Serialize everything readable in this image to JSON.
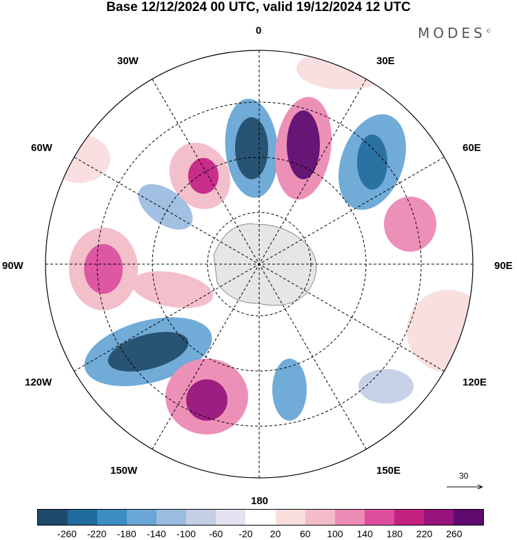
{
  "title": "Base 12/12/2024 00 UTC, valid 19/12/2024 12 UTC",
  "brand": "MODES",
  "brand_mark": "©",
  "longitude_labels": {
    "lon_0": "0",
    "lon_30e": "30E",
    "lon_60e": "60E",
    "lon_90e": "90E",
    "lon_120e": "120E",
    "lon_150e": "150E",
    "lon_180": "180",
    "lon_150w": "150W",
    "lon_120w": "120W",
    "lon_90w": "90W",
    "lon_60w": "60W",
    "lon_30w": "30W"
  },
  "vector_reference": "30",
  "colorbar": {
    "colors": [
      "#1d4a6b",
      "#1f6b9c",
      "#3e8ec4",
      "#6aa7d6",
      "#9dbde0",
      "#c4cfe6",
      "#e4e2f1",
      "#ffffff",
      "#f9dede",
      "#f3bcc8",
      "#ec8bb4",
      "#dd4f9e",
      "#c42283",
      "#98127b",
      "#5e0a6e"
    ],
    "tick_labels": [
      "-260",
      "-220",
      "-180",
      "-140",
      "-100",
      "-60",
      "-20",
      "20",
      "60",
      "100",
      "140",
      "180",
      "220",
      "260"
    ]
  },
  "anomaly_centers": [
    {
      "label": "negative",
      "color": "#1d4a6b"
    },
    {
      "label": "positive",
      "color": "#98127b"
    }
  ]
}
